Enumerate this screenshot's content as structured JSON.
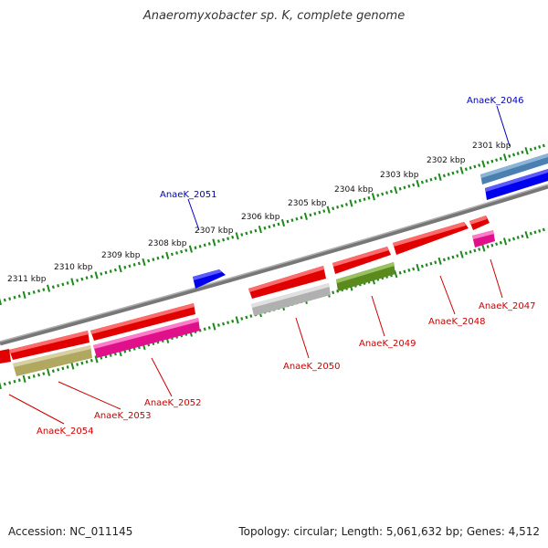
{
  "title": "Anaeromyxobacter sp. K, complete genome",
  "footer": {
    "accession": "Accession: NC_011145",
    "summary": "Topology: circular; Length: 5,061,632 bp; Genes: 4,512"
  },
  "colors": {
    "backbone": "#808080",
    "tick": "#1e8a1e",
    "label_forward": "#0000bb",
    "label_reverse": "#cc0000",
    "leader": "#cc0000",
    "leader_forward": "#0000bb"
  },
  "scale_labels": [
    "2301 kbp",
    "2302 kbp",
    "2303 kbp",
    "2304 kbp",
    "2305 kbp",
    "2306 kbp",
    "2307 kbp",
    "2308 kbp",
    "2309 kbp",
    "2310 kbp",
    "2311 kbp"
  ],
  "genes": [
    {
      "id": "AnaeK_2046",
      "label": "AnaeK_2046",
      "color": "#4a7fb0"
    },
    {
      "id": "AnaeK_2046b",
      "label": "",
      "color": "#0000ee"
    },
    {
      "id": "AnaeK_2047",
      "label": "AnaeK_2047",
      "color": "#e0108a"
    },
    {
      "id": "AnaeK_2047r",
      "label": "",
      "color": "#e00000"
    },
    {
      "id": "AnaeK_2048",
      "label": "AnaeK_2048",
      "color": "#e00000"
    },
    {
      "id": "AnaeK_2049",
      "label": "AnaeK_2049",
      "color": "#5a8a1e"
    },
    {
      "id": "AnaeK_2049r",
      "label": "",
      "color": "#e00000"
    },
    {
      "id": "AnaeK_2050",
      "label": "AnaeK_2050",
      "color": "#b0b0b0"
    },
    {
      "id": "AnaeK_2050r",
      "label": "",
      "color": "#e00000"
    },
    {
      "id": "AnaeK_2051",
      "label": "AnaeK_2051",
      "color": "#0000ee"
    },
    {
      "id": "AnaeK_2052",
      "label": "AnaeK_2052",
      "color": "#e0108a"
    },
    {
      "id": "AnaeK_2052r",
      "label": "",
      "color": "#e00000"
    },
    {
      "id": "AnaeK_2053",
      "label": "AnaeK_2053",
      "color": "#b0a860"
    },
    {
      "id": "AnaeK_2053r",
      "label": "",
      "color": "#e00000"
    },
    {
      "id": "AnaeK_2054",
      "label": "AnaeK_2054",
      "color": "#e00000"
    }
  ]
}
